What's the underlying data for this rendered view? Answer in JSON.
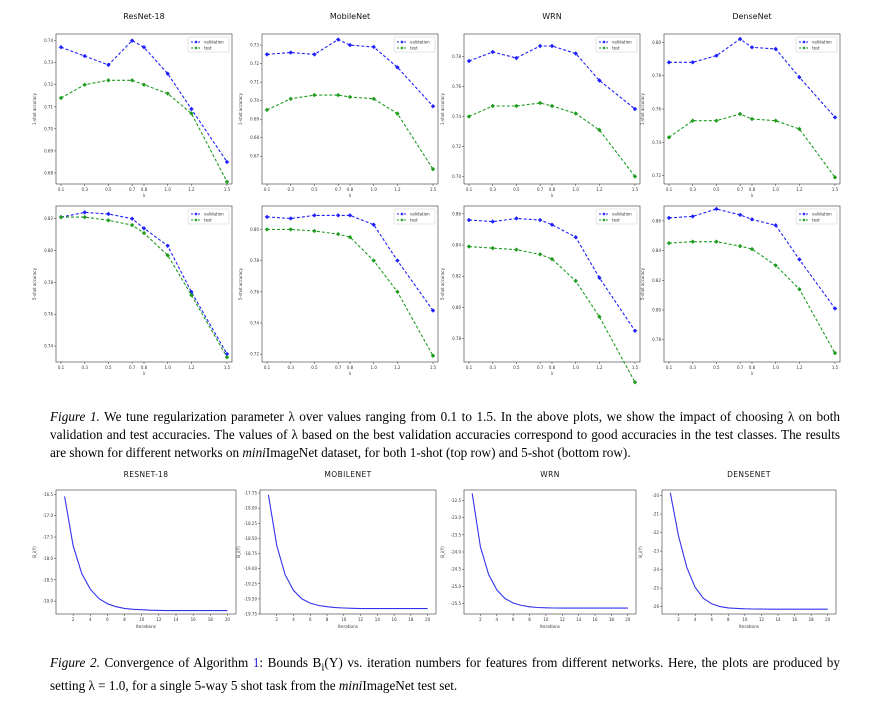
{
  "figure1": {
    "rows": [
      "1-shot",
      "5-shot"
    ],
    "legend": [
      "validation",
      "test"
    ],
    "colors": {
      "validation": "#1f1fff",
      "test": "#1f9b1f"
    },
    "caption": {
      "label": "Figure 1.",
      "part1": " We tune regularization parameter λ over values ranging from 0.1 to 1.5. In the above plots, we show the impact of choosing λ on both validation and test accuracies. The values of λ based on the best validation accuracies correspond to good accuracies in the test classes. The results are shown for different networks on ",
      "emph": "mini",
      "part2": "ImageNet dataset, for both 1-shot (top row) and 5-shot (bottom row)."
    }
  },
  "figure2": {
    "color": "#3333ee",
    "caption": {
      "label": "Figure 2.",
      "part1": " Convergence of Algorithm ",
      "ref": "1",
      "part2": ": Bounds B",
      "sub": "i",
      "part3": "(Y) vs. iteration numbers for features from different networks. Here, the plots are produced by setting λ = 1.0, for a single 5-way 5 shot task from the ",
      "emph": "mini",
      "part4": "ImageNet test set."
    }
  },
  "chart_data": [
    {
      "type": "line",
      "title": "ResNet-18",
      "xlabel": "λ",
      "ylabel": "1-shot accuracy",
      "x": [
        0.1,
        0.3,
        0.5,
        0.7,
        0.8,
        1.0,
        1.2,
        1.5
      ],
      "xticks": [
        "0.1",
        "0.3",
        "0.5",
        "0.7",
        "0.8",
        "1.0",
        "1.2",
        "1.5"
      ],
      "ylim": [
        0.675,
        0.743
      ],
      "yticks": [
        0.68,
        0.69,
        0.7,
        0.71,
        0.72,
        0.73,
        0.74
      ],
      "legend": "top-right",
      "series": [
        {
          "name": "validation",
          "values": [
            0.737,
            0.733,
            0.729,
            0.74,
            0.737,
            0.725,
            0.709,
            0.685
          ]
        },
        {
          "name": "test",
          "values": [
            0.714,
            0.72,
            0.722,
            0.722,
            0.72,
            0.716,
            0.707,
            0.676
          ]
        }
      ]
    },
    {
      "type": "line",
      "title": "MobileNet",
      "xlabel": "λ",
      "ylabel": "1-shot accuracy",
      "x": [
        0.1,
        0.3,
        0.5,
        0.7,
        0.8,
        1.0,
        1.2,
        1.5
      ],
      "xticks": [
        "0.1",
        "0.3",
        "0.5",
        "0.7",
        "0.8",
        "1.0",
        "1.2",
        "1.5"
      ],
      "ylim": [
        0.655,
        0.736
      ],
      "yticks": [
        0.67,
        0.68,
        0.69,
        0.7,
        0.71,
        0.72,
        0.73
      ],
      "legend": "top-right",
      "series": [
        {
          "name": "validation",
          "values": [
            0.725,
            0.726,
            0.725,
            0.733,
            0.73,
            0.729,
            0.718,
            0.697
          ]
        },
        {
          "name": "test",
          "values": [
            0.695,
            0.701,
            0.703,
            0.703,
            0.702,
            0.701,
            0.693,
            0.663
          ]
        }
      ]
    },
    {
      "type": "line",
      "title": "WRN",
      "xlabel": "λ",
      "ylabel": "1-shot accuracy",
      "x": [
        0.1,
        0.3,
        0.5,
        0.7,
        0.8,
        1.0,
        1.2,
        1.5
      ],
      "xticks": [
        "0.1",
        "0.3",
        "0.5",
        "0.7",
        "0.8",
        "1.0",
        "1.2",
        "1.5"
      ],
      "ylim": [
        0.695,
        0.795
      ],
      "yticks": [
        0.7,
        0.72,
        0.74,
        0.76,
        0.78
      ],
      "legend": "top-right",
      "series": [
        {
          "name": "validation",
          "values": [
            0.777,
            0.783,
            0.779,
            0.787,
            0.787,
            0.782,
            0.764,
            0.745
          ]
        },
        {
          "name": "test",
          "values": [
            0.74,
            0.747,
            0.747,
            0.749,
            0.747,
            0.742,
            0.731,
            0.7
          ]
        }
      ]
    },
    {
      "type": "line",
      "title": "DenseNet",
      "xlabel": "λ",
      "ylabel": "1-shot accuracy",
      "x": [
        0.1,
        0.3,
        0.5,
        0.7,
        0.8,
        1.0,
        1.2,
        1.5
      ],
      "xticks": [
        "0.1",
        "0.3",
        "0.5",
        "0.7",
        "0.8",
        "1.0",
        "1.2",
        "1.5"
      ],
      "ylim": [
        0.715,
        0.805
      ],
      "yticks": [
        0.72,
        0.74,
        0.76,
        0.78,
        0.8
      ],
      "legend": "top-right",
      "series": [
        {
          "name": "validation",
          "values": [
            0.788,
            0.788,
            0.792,
            0.802,
            0.797,
            0.796,
            0.779,
            0.755
          ]
        },
        {
          "name": "test",
          "values": [
            0.743,
            0.753,
            0.753,
            0.757,
            0.754,
            0.753,
            0.748,
            0.719
          ]
        }
      ]
    },
    {
      "type": "line",
      "title": "",
      "xlabel": "λ",
      "ylabel": "5-shot accuracy",
      "x": [
        0.1,
        0.3,
        0.5,
        0.7,
        0.8,
        1.0,
        1.2,
        1.5
      ],
      "xticks": [
        "0.1",
        "0.3",
        "0.5",
        "0.7",
        "0.8",
        "1.0",
        "1.2",
        "1.5"
      ],
      "ylim": [
        0.73,
        0.828
      ],
      "yticks": [
        0.74,
        0.76,
        0.78,
        0.8,
        0.82
      ],
      "legend": "top-right",
      "series": [
        {
          "name": "validation",
          "values": [
            0.821,
            0.824,
            0.823,
            0.82,
            0.814,
            0.803,
            0.774,
            0.735
          ]
        },
        {
          "name": "test",
          "values": [
            0.821,
            0.821,
            0.819,
            0.816,
            0.811,
            0.797,
            0.772,
            0.733
          ]
        }
      ]
    },
    {
      "type": "line",
      "title": "",
      "xlabel": "λ",
      "ylabel": "5-shot accuracy",
      "x": [
        0.1,
        0.3,
        0.5,
        0.7,
        0.8,
        1.0,
        1.2,
        1.5
      ],
      "xticks": [
        "0.1",
        "0.3",
        "0.5",
        "0.7",
        "0.8",
        "1.0",
        "1.2",
        "1.5"
      ],
      "ylim": [
        0.715,
        0.815
      ],
      "yticks": [
        0.72,
        0.74,
        0.76,
        0.78,
        0.8
      ],
      "legend": "top-right",
      "series": [
        {
          "name": "validation",
          "values": [
            0.808,
            0.807,
            0.809,
            0.809,
            0.809,
            0.803,
            0.78,
            0.748
          ]
        },
        {
          "name": "test",
          "values": [
            0.8,
            0.8,
            0.799,
            0.797,
            0.795,
            0.78,
            0.76,
            0.719
          ]
        }
      ]
    },
    {
      "type": "line",
      "title": "",
      "xlabel": "λ",
      "ylabel": "5-shot accuracy",
      "x": [
        0.1,
        0.3,
        0.5,
        0.7,
        0.8,
        1.0,
        1.2,
        1.5
      ],
      "xticks": [
        "0.1",
        "0.3",
        "0.5",
        "0.7",
        "0.8",
        "1.0",
        "1.2",
        "1.5"
      ],
      "ylim": [
        0.765,
        0.865
      ],
      "yticks": [
        0.78,
        0.8,
        0.82,
        0.84,
        0.86
      ],
      "legend": "top-right",
      "series": [
        {
          "name": "validation",
          "values": [
            0.856,
            0.855,
            0.857,
            0.856,
            0.853,
            0.845,
            0.819,
            0.785
          ]
        },
        {
          "name": "test",
          "values": [
            0.839,
            0.838,
            0.837,
            0.834,
            0.831,
            0.817,
            0.794,
            0.752
          ]
        }
      ]
    },
    {
      "type": "line",
      "title": "",
      "xlabel": "λ",
      "ylabel": "5-shot accuracy",
      "x": [
        0.1,
        0.3,
        0.5,
        0.7,
        0.8,
        1.0,
        1.2,
        1.5
      ],
      "xticks": [
        "0.1",
        "0.3",
        "0.5",
        "0.7",
        "0.8",
        "1.0",
        "1.2",
        "1.5"
      ],
      "ylim": [
        0.765,
        0.87
      ],
      "yticks": [
        0.78,
        0.8,
        0.82,
        0.84,
        0.86
      ],
      "legend": "top-right",
      "series": [
        {
          "name": "validation",
          "values": [
            0.862,
            0.863,
            0.868,
            0.864,
            0.861,
            0.857,
            0.834,
            0.801
          ]
        },
        {
          "name": "test",
          "values": [
            0.845,
            0.846,
            0.846,
            0.843,
            0.841,
            0.83,
            0.814,
            0.771
          ]
        }
      ]
    },
    {
      "type": "line",
      "title": "RESNET-18",
      "xlabel": "Iterations",
      "ylabel": "B_i(Y)",
      "xticks": [
        2,
        4,
        6,
        8,
        10,
        12,
        14,
        16,
        18,
        20
      ],
      "xlim": [
        0,
        21
      ],
      "ylim": [
        -19.3,
        -16.4
      ],
      "yticks": [
        -19.0,
        -18.5,
        -18.0,
        -17.5,
        -17.0,
        -16.5
      ],
      "yticklabels": [
        "-19.0",
        "-18.5",
        "-18.0",
        "-17.5",
        "-17.0",
        "-16.5"
      ],
      "x": [
        1,
        2,
        3,
        4,
        5,
        6,
        7,
        8,
        9,
        10,
        11,
        12,
        13,
        14,
        15,
        16,
        17,
        18,
        19,
        20
      ],
      "values": [
        -16.55,
        -17.7,
        -18.35,
        -18.72,
        -18.94,
        -19.06,
        -19.13,
        -19.17,
        -19.19,
        -19.2,
        -19.21,
        -19.215,
        -19.22,
        -19.22,
        -19.22,
        -19.22,
        -19.22,
        -19.22,
        -19.22,
        -19.22
      ]
    },
    {
      "type": "line",
      "title": "MOBILENET",
      "xlabel": "Iterations",
      "ylabel": "B_i(Y)",
      "xticks": [
        2,
        4,
        6,
        8,
        10,
        12,
        14,
        16,
        18,
        20
      ],
      "xlim": [
        0,
        21
      ],
      "ylim": [
        -19.75,
        -17.7
      ],
      "yticks": [
        -19.75,
        -19.5,
        -19.25,
        -19.0,
        -18.75,
        -18.5,
        -18.25,
        -18.0,
        -17.75
      ],
      "yticklabels": [
        "-19.75",
        "-19.50",
        "-19.25",
        "-19.00",
        "-18.75",
        "-18.50",
        "-18.25",
        "-18.00",
        "-17.75"
      ],
      "x": [
        1,
        2,
        3,
        4,
        5,
        6,
        7,
        8,
        9,
        10,
        11,
        12,
        13,
        14,
        15,
        16,
        17,
        18,
        19,
        20
      ],
      "values": [
        -17.78,
        -18.62,
        -19.1,
        -19.36,
        -19.5,
        -19.57,
        -19.61,
        -19.63,
        -19.645,
        -19.65,
        -19.655,
        -19.66,
        -19.66,
        -19.66,
        -19.66,
        -19.66,
        -19.66,
        -19.66,
        -19.66,
        -19.66
      ]
    },
    {
      "type": "line",
      "title": "WRN",
      "xlabel": "Iterations",
      "ylabel": "B_i(Y)",
      "xticks": [
        2,
        4,
        6,
        8,
        10,
        12,
        14,
        16,
        18,
        20
      ],
      "xlim": [
        0,
        21
      ],
      "ylim": [
        -25.8,
        -22.2
      ],
      "yticks": [
        -25.5,
        -25.0,
        -24.5,
        -24.0,
        -23.5,
        -23.0,
        -22.5
      ],
      "yticklabels": [
        "-25.5",
        "-25.0",
        "-24.5",
        "-24.0",
        "-23.5",
        "-23.0",
        "-22.5"
      ],
      "x": [
        1,
        2,
        3,
        4,
        5,
        6,
        7,
        8,
        9,
        10,
        11,
        12,
        13,
        14,
        15,
        16,
        17,
        18,
        19,
        20
      ],
      "values": [
        -22.3,
        -23.85,
        -24.65,
        -25.1,
        -25.35,
        -25.48,
        -25.55,
        -25.59,
        -25.61,
        -25.62,
        -25.625,
        -25.63,
        -25.63,
        -25.63,
        -25.63,
        -25.63,
        -25.63,
        -25.63,
        -25.63,
        -25.63
      ]
    },
    {
      "type": "line",
      "title": "DENSENET",
      "xlabel": "Iterations",
      "ylabel": "B_i(Y)",
      "xticks": [
        2,
        4,
        6,
        8,
        10,
        12,
        14,
        16,
        18,
        20
      ],
      "xlim": [
        0,
        21
      ],
      "ylim": [
        -26.4,
        -19.7
      ],
      "yticks": [
        -26,
        -25,
        -24,
        -23,
        -22,
        -21,
        -20
      ],
      "yticklabels": [
        "-26",
        "-25",
        "-24",
        "-23",
        "-22",
        "-21",
        "-20"
      ],
      "x": [
        1,
        2,
        3,
        4,
        5,
        6,
        7,
        8,
        9,
        10,
        11,
        12,
        13,
        14,
        15,
        16,
        17,
        18,
        19,
        20
      ],
      "values": [
        -19.85,
        -22.2,
        -23.9,
        -24.95,
        -25.55,
        -25.85,
        -26.0,
        -26.07,
        -26.1,
        -26.12,
        -26.13,
        -26.135,
        -26.14,
        -26.14,
        -26.14,
        -26.14,
        -26.14,
        -26.14,
        -26.14,
        -26.14
      ]
    }
  ]
}
